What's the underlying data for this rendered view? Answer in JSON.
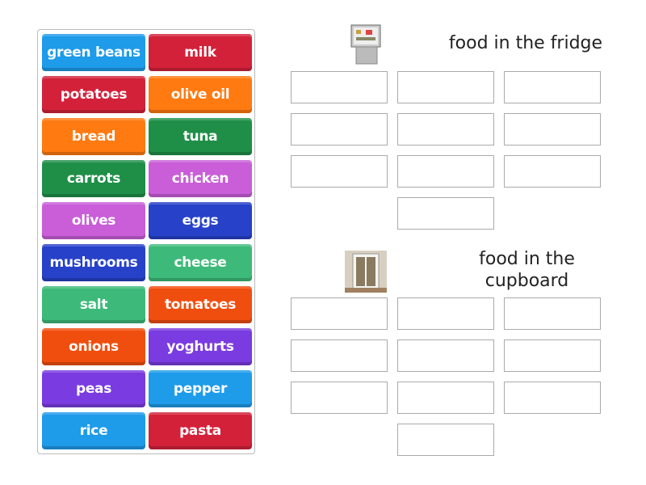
{
  "tiles": [
    {
      "label": "green beans",
      "color": "#1e9be9"
    },
    {
      "label": "milk",
      "color": "#d4213a"
    },
    {
      "label": "potatoes",
      "color": "#d4213a"
    },
    {
      "label": "olive oil",
      "color": "#ff7a10"
    },
    {
      "label": "bread",
      "color": "#ff7a10"
    },
    {
      "label": "tuna",
      "color": "#1f8f48"
    },
    {
      "label": "carrots",
      "color": "#1f8f48"
    },
    {
      "label": "chicken",
      "color": "#c95ed8"
    },
    {
      "label": "olives",
      "color": "#c95ed8"
    },
    {
      "label": "eggs",
      "color": "#2741c8"
    },
    {
      "label": "mushrooms",
      "color": "#2741c8"
    },
    {
      "label": "cheese",
      "color": "#3dba7a"
    },
    {
      "label": "salt",
      "color": "#3dba7a"
    },
    {
      "label": "tomatoes",
      "color": "#f04e0e"
    },
    {
      "label": "onions",
      "color": "#f04e0e"
    },
    {
      "label": "yoghurts",
      "color": "#7a3be0"
    },
    {
      "label": "peas",
      "color": "#7a3be0"
    },
    {
      "label": "pepper",
      "color": "#1e9be9"
    },
    {
      "label": "rice",
      "color": "#1e9be9"
    },
    {
      "label": "pasta",
      "color": "#d4213a"
    }
  ],
  "groups": [
    {
      "title": "food in the fridge",
      "icon": "fridge-image",
      "slots": 10
    },
    {
      "title": "food in the cupboard",
      "icon": "cupboard-image",
      "slots": 10
    }
  ]
}
